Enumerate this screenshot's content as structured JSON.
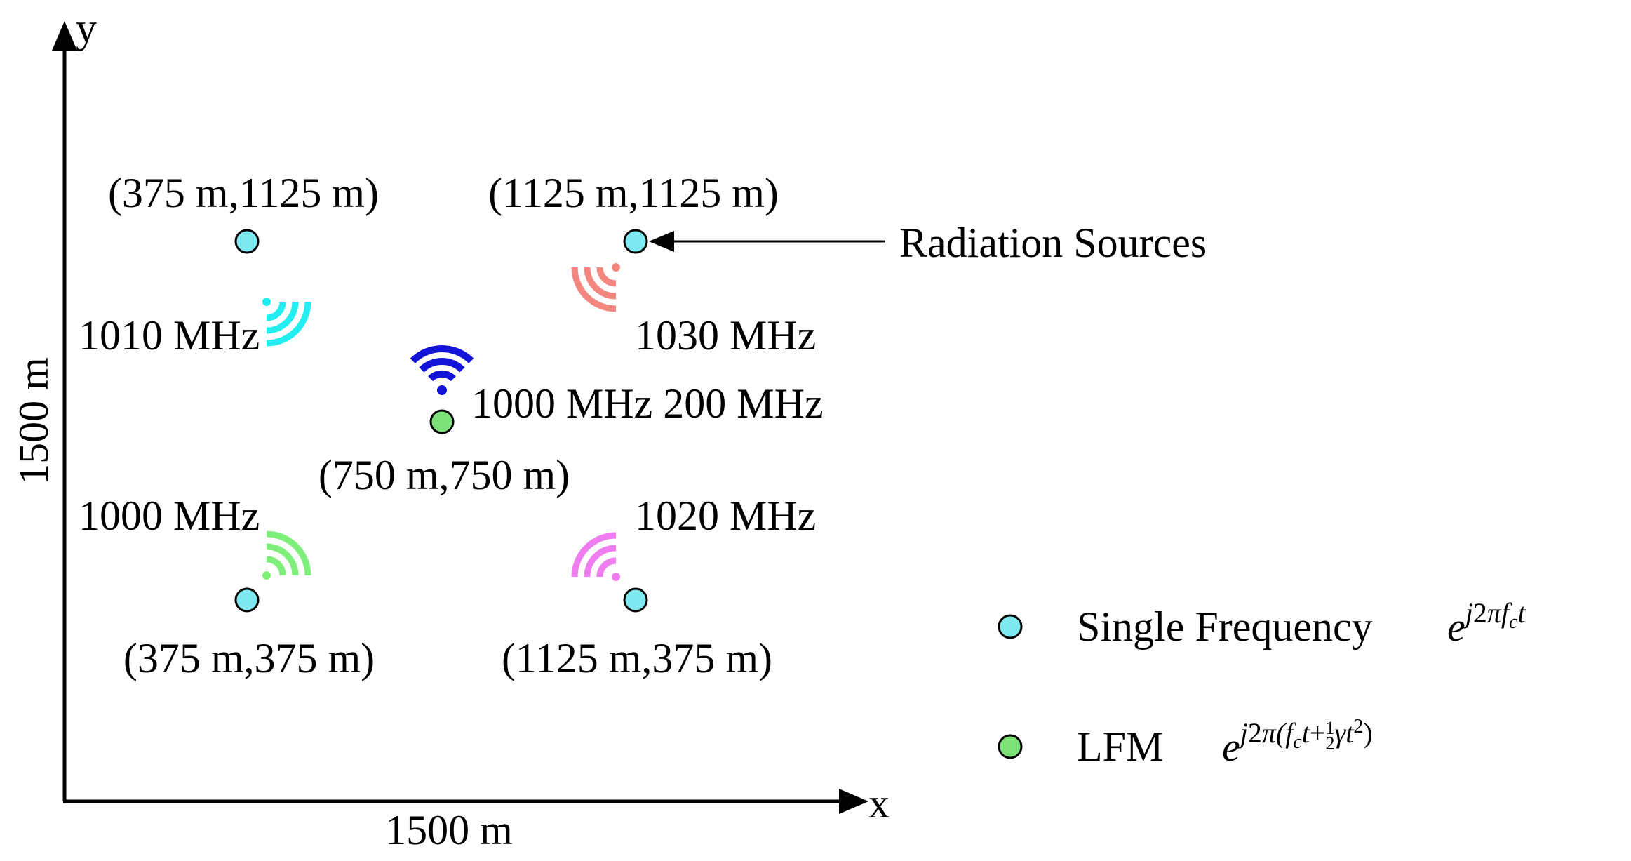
{
  "axes": {
    "y_label": "y",
    "x_label": "x",
    "x_span_label": "1500 m",
    "y_span_label": "1500 m"
  },
  "sources": [
    {
      "coord_label": "(375 m,1125 m)",
      "freq_label": "1010 MHz",
      "signal": "single",
      "wifi_color": "#22EDF0"
    },
    {
      "coord_label": "(1125 m,1125 m)",
      "freq_label": "1030 MHz",
      "signal": "single",
      "wifi_color": "#F3877F"
    },
    {
      "coord_label": "(750 m,750 m)",
      "freq_label": "1000 MHz 200 MHz",
      "signal": "lfm",
      "wifi_color": "#1414D8"
    },
    {
      "coord_label": "(375 m,375 m)",
      "freq_label": "1000 MHz",
      "signal": "single",
      "wifi_color": "#7FEF7B"
    },
    {
      "coord_label": "(1125 m,375 m)",
      "freq_label": "1020 MHz",
      "signal": "single",
      "wifi_color": "#F07DF0"
    }
  ],
  "annotation": {
    "label": "Radiation Sources"
  },
  "legend": {
    "single": {
      "label": "Single Frequency",
      "color": "#7EEAF0"
    },
    "lfm": {
      "label": "LFM",
      "color": "#7EE27A"
    }
  },
  "colors": {
    "axis": "#000000",
    "marker_stroke": "#000000"
  }
}
